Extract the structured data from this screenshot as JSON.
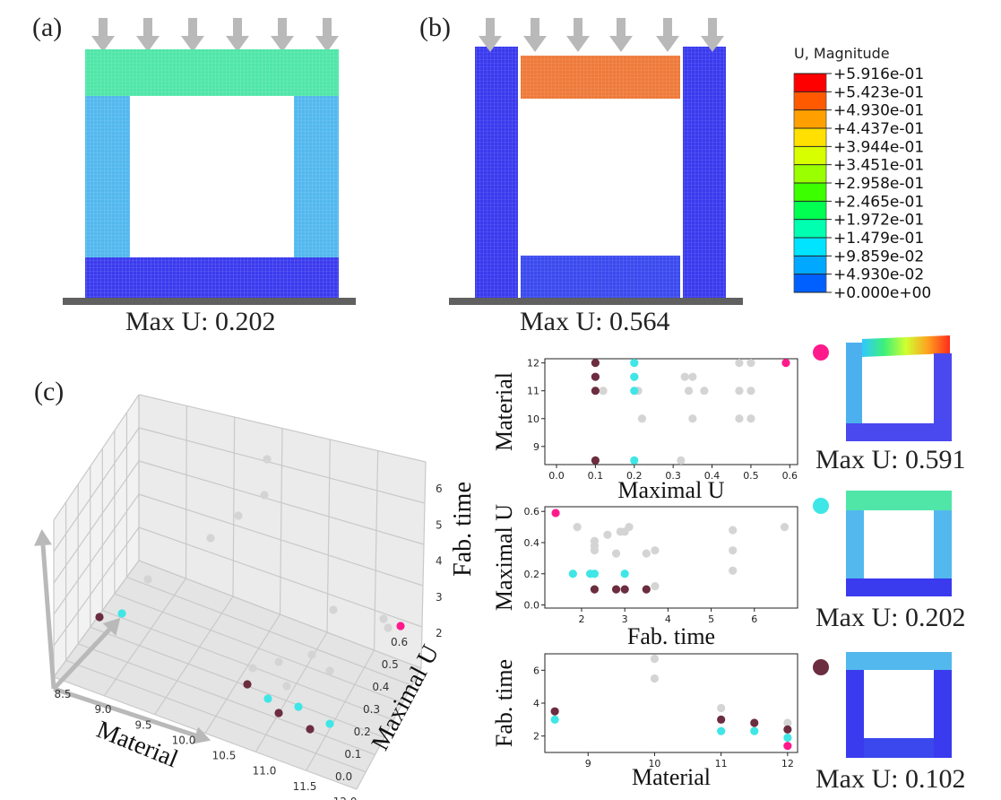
{
  "panels": {
    "a": {
      "label": "(a)",
      "caption": "Max U: 0.202"
    },
    "b": {
      "label": "(b)",
      "caption": "Max U: 0.564"
    },
    "c": {
      "label": "(c)"
    }
  },
  "legend": {
    "title": "U, Magnitude",
    "ticks": [
      "+5.916e-01",
      "+5.423e-01",
      "+4.930e-01",
      "+4.437e-01",
      "+3.944e-01",
      "+3.451e-01",
      "+2.958e-01",
      "+2.465e-01",
      "+1.972e-01",
      "+1.479e-01",
      "+9.859e-02",
      "+4.930e-02",
      "+0.000e+00"
    ],
    "colors": [
      "#ff0000",
      "#ff5a00",
      "#ffa000",
      "#ffe000",
      "#d8ff00",
      "#9aff00",
      "#3cff00",
      "#00ff50",
      "#00ffb0",
      "#00e4ff",
      "#00a8ff",
      "#0060ff",
      "#0018ff"
    ]
  },
  "thumbs": [
    {
      "caption": "Max U: 0.591",
      "dot_color": "#ff1a8c"
    },
    {
      "caption": "Max U: 0.202",
      "dot_color": "#3fe6e6"
    },
    {
      "caption": "Max U: 0.102",
      "dot_color": "#6b2d3f"
    }
  ],
  "colors": {
    "gray": "#d4d4d4",
    "cyan": "#3fe6e6",
    "maroon": "#6b2d3f",
    "pink": "#ff1a8c",
    "arrow": "#b9b9b9",
    "ground": "#606060"
  },
  "chart_data": [
    {
      "type": "scatter",
      "name": "",
      "xlabel": "Maximal U",
      "ylabel": "Material",
      "xlim": [
        -0.03,
        0.62
      ],
      "ylim": [
        8.35,
        12.15
      ],
      "xticks": [
        0.0,
        0.1,
        0.2,
        0.3,
        0.4,
        0.5,
        0.6
      ],
      "xtick_labels": [
        "0.0",
        "0.1",
        "0.2",
        "0.3",
        "0.4",
        "0.5",
        "0.6"
      ],
      "yticks": [
        9,
        10,
        11,
        12
      ],
      "ytick_labels": [
        "9",
        "10",
        "11",
        "12"
      ],
      "points": {
        "gray": [
          [
            0.1,
            11.5
          ],
          [
            0.12,
            11
          ],
          [
            0.21,
            11
          ],
          [
            0.22,
            10
          ],
          [
            0.32,
            8.5
          ],
          [
            0.33,
            11.5
          ],
          [
            0.35,
            11.5
          ],
          [
            0.34,
            11
          ],
          [
            0.38,
            11
          ],
          [
            0.35,
            10
          ],
          [
            0.47,
            12
          ],
          [
            0.5,
            12
          ],
          [
            0.47,
            11
          ],
          [
            0.5,
            11
          ],
          [
            0.47,
            10
          ],
          [
            0.5,
            10
          ],
          [
            0.2,
            11.5
          ]
        ],
        "cyan": [
          [
            0.2,
            12
          ],
          [
            0.2,
            11.5
          ],
          [
            0.2,
            11
          ],
          [
            0.2,
            8.5
          ]
        ],
        "maroon": [
          [
            0.1,
            12
          ],
          [
            0.1,
            11.5
          ],
          [
            0.1,
            11
          ],
          [
            0.1,
            8.5
          ]
        ],
        "pink": [
          [
            0.59,
            12
          ]
        ]
      }
    },
    {
      "type": "scatter",
      "name": "",
      "xlabel": "Fab. time",
      "ylabel": "Maximal U",
      "xlim": [
        1.15,
        7.0
      ],
      "ylim": [
        -0.02,
        0.63
      ],
      "xticks": [
        2,
        3,
        4,
        5,
        6
      ],
      "xtick_labels": [
        "2",
        "3",
        "4",
        "5",
        "6"
      ],
      "yticks": [
        0.0,
        0.2,
        0.4,
        0.6
      ],
      "ytick_labels": [
        "0.0",
        "0.2",
        "0.4",
        "0.6"
      ],
      "points": {
        "gray": [
          [
            1.9,
            0.5
          ],
          [
            2.3,
            0.41
          ],
          [
            2.3,
            0.38
          ],
          [
            2.3,
            0.35
          ],
          [
            2.6,
            0.45
          ],
          [
            2.8,
            0.33
          ],
          [
            2.9,
            0.47
          ],
          [
            3.0,
            0.47
          ],
          [
            3.1,
            0.5
          ],
          [
            3.5,
            0.33
          ],
          [
            3.7,
            0.35
          ],
          [
            3.7,
            0.12
          ],
          [
            5.5,
            0.48
          ],
          [
            5.5,
            0.35
          ],
          [
            5.5,
            0.22
          ],
          [
            6.7,
            0.5
          ]
        ],
        "cyan": [
          [
            1.8,
            0.2
          ],
          [
            2.2,
            0.2
          ],
          [
            2.3,
            0.2
          ],
          [
            3.0,
            0.2
          ]
        ],
        "maroon": [
          [
            2.3,
            0.1
          ],
          [
            2.8,
            0.1
          ],
          [
            3.0,
            0.1
          ],
          [
            3.5,
            0.1
          ]
        ],
        "pink": [
          [
            1.4,
            0.59
          ]
        ]
      }
    },
    {
      "type": "scatter",
      "name": "",
      "xlabel": "Material",
      "ylabel": "Fab. time",
      "xlim": [
        8.35,
        12.15
      ],
      "ylim": [
        1.0,
        7.0
      ],
      "xticks": [
        9,
        10,
        11,
        12
      ],
      "xtick_labels": [
        "9",
        "10",
        "11",
        "12"
      ],
      "yticks": [
        2,
        4,
        6
      ],
      "ytick_labels": [
        "2",
        "4",
        "6"
      ],
      "points": {
        "gray": [
          [
            10,
            6.7
          ],
          [
            10,
            5.5
          ],
          [
            11,
            3.7
          ],
          [
            12,
            2.8
          ]
        ],
        "cyan": [
          [
            8.5,
            3.0
          ],
          [
            11,
            2.3
          ],
          [
            11.5,
            2.3
          ],
          [
            12,
            1.9
          ]
        ],
        "maroon": [
          [
            8.5,
            3.5
          ],
          [
            11,
            3.0
          ],
          [
            11.5,
            2.8
          ],
          [
            12,
            2.4
          ]
        ],
        "pink": [
          [
            12,
            1.4
          ]
        ]
      }
    },
    {
      "type": "scatter",
      "name": "3d",
      "xlabel": "Material",
      "ylabel": "Maximal U",
      "zlabel": "Fab. time",
      "xticks": [
        "8.5",
        "9.0",
        "9.5",
        "10.0",
        "10.5",
        "11.0",
        "11.5",
        "12.0"
      ],
      "yticks": [
        "0.0",
        "0.1",
        "0.2",
        "0.3",
        "0.4",
        "0.5",
        "0.6"
      ],
      "zticks": [
        "2",
        "3",
        "4",
        "5",
        "6"
      ]
    }
  ]
}
